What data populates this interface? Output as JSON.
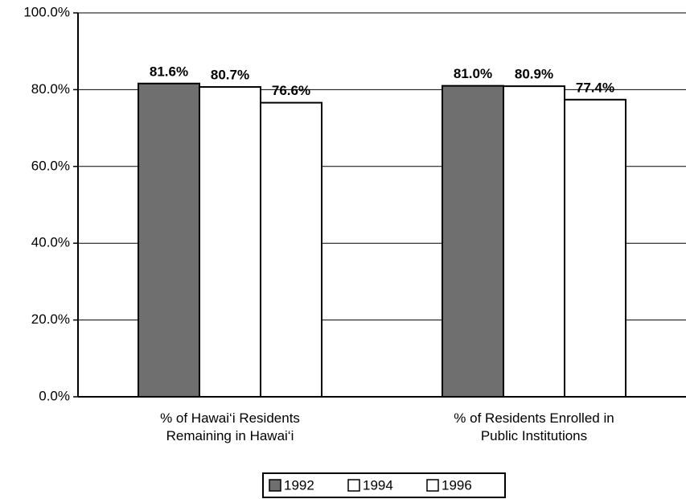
{
  "chart_data": {
    "type": "bar",
    "categories": [
      "% of Hawai‘i Residents Remaining in Hawai‘i",
      "% of Residents Enrolled in Public Institutions"
    ],
    "series": [
      {
        "name": "1992",
        "color": "#6f6f6f",
        "values": [
          81.6,
          81.0
        ],
        "value_labels": [
          "81.6%",
          "81.0%"
        ]
      },
      {
        "name": "1994",
        "color": "#ffffff",
        "values": [
          80.7,
          80.9
        ],
        "value_labels": [
          "80.7%",
          "80.9%"
        ]
      },
      {
        "name": "1996",
        "color": "#ffffff",
        "values": [
          76.6,
          77.4
        ],
        "value_labels": [
          "76.6%",
          "77.4%"
        ]
      }
    ],
    "ylim": [
      0,
      100
    ],
    "yticks": [
      {
        "value": 0,
        "label": "0.0%"
      },
      {
        "value": 20,
        "label": "20.0%"
      },
      {
        "value": 40,
        "label": "40.0%"
      },
      {
        "value": 60,
        "label": "60.0%"
      },
      {
        "value": 80,
        "label": "80.0%"
      },
      {
        "value": 100,
        "label": "100.0%"
      }
    ],
    "grid": true,
    "legend": "bottom"
  }
}
